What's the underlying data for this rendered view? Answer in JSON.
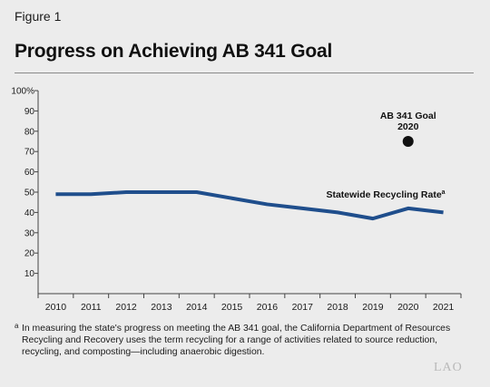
{
  "figure_label": "Figure 1",
  "title": "Progress on Achieving AB 341 Goal",
  "footnote": {
    "marker": "a",
    "text": "In measuring the state's progress on meeting the AB 341 goal, the California Department of Resources Recycling and Recovery uses the term recycling for a range of activities related to source reduction, recycling, and composting—including anaerobic digestion."
  },
  "logo_text": "LAO",
  "chart_data": {
    "type": "line",
    "title": "Progress on Achieving AB 341 Goal",
    "xlabel": "",
    "ylabel": "",
    "x": [
      2010,
      2011,
      2012,
      2013,
      2014,
      2015,
      2016,
      2017,
      2018,
      2019,
      2020,
      2021
    ],
    "x_tick_labels": [
      "2010",
      "2011",
      "2012",
      "2013",
      "2014",
      "2015",
      "2016",
      "2017",
      "2018",
      "2019",
      "2020",
      "2021"
    ],
    "ylim": [
      0,
      100
    ],
    "y_ticks": [
      10,
      20,
      30,
      40,
      50,
      60,
      70,
      80,
      90,
      100
    ],
    "y_tick_labels": [
      "10",
      "20",
      "30",
      "40",
      "50",
      "60",
      "70",
      "80",
      "90",
      "100%"
    ],
    "grid": false,
    "series": [
      {
        "name": "Statewide Recycling Rate",
        "name_superscript": "a",
        "color": "#1f4e8c",
        "values": [
          49,
          49,
          50,
          50,
          50,
          47,
          44,
          42,
          40,
          37,
          42,
          40
        ]
      }
    ],
    "goal_point": {
      "label_line1": "AB 341 Goal",
      "label_line2": "2020",
      "x": 2020,
      "y": 75,
      "color": "#111111"
    }
  }
}
